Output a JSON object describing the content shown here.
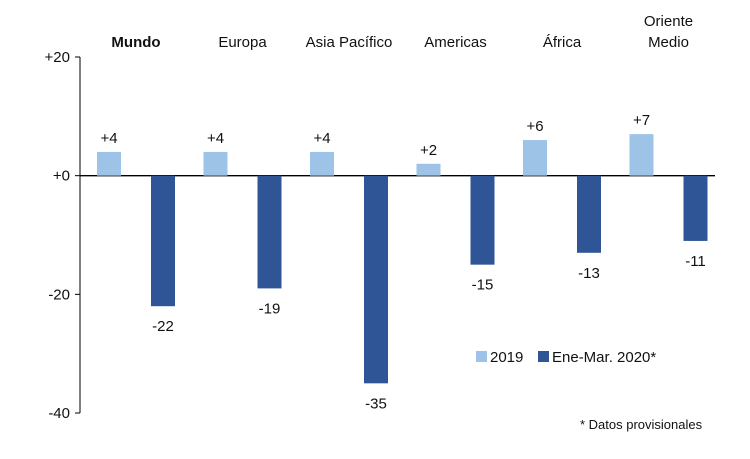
{
  "chart_data": {
    "type": "bar",
    "categories": [
      "Mundo",
      "Europa",
      "Asia Pacífico",
      "Americas",
      "África",
      "Oriente Medio"
    ],
    "category_lines": [
      [
        "Mundo"
      ],
      [
        "Europa"
      ],
      [
        "Asia Pacífico"
      ],
      [
        "Americas"
      ],
      [
        "África"
      ],
      [
        "Oriente",
        "Medio"
      ]
    ],
    "bold_categories": [
      "Mundo"
    ],
    "series": [
      {
        "name": "2019",
        "values": [
          4,
          4,
          4,
          2,
          6,
          7
        ],
        "labels": [
          "+4",
          "+4",
          "+4",
          "+2",
          "+6",
          "+7"
        ],
        "color": "#9DC3E6"
      },
      {
        "name": "Ene-Mar. 2020*",
        "values": [
          -22,
          -19,
          -35,
          -15,
          -13,
          -11
        ],
        "labels": [
          "-22",
          "-19",
          "-35",
          "-15",
          "-13",
          "-11"
        ],
        "color": "#2F5597"
      }
    ],
    "ylim": [
      -40,
      20
    ],
    "yticks": [
      20,
      0,
      -20,
      -40
    ],
    "ytick_labels": [
      "+20",
      "+0",
      "-20",
      "-40"
    ],
    "title": "",
    "xlabel": "",
    "ylabel": "",
    "grid": false,
    "legend_position": "lower-right"
  },
  "footnote": "* Datos provisionales",
  "colors": {
    "axis": "#000000",
    "text": "#111111"
  }
}
